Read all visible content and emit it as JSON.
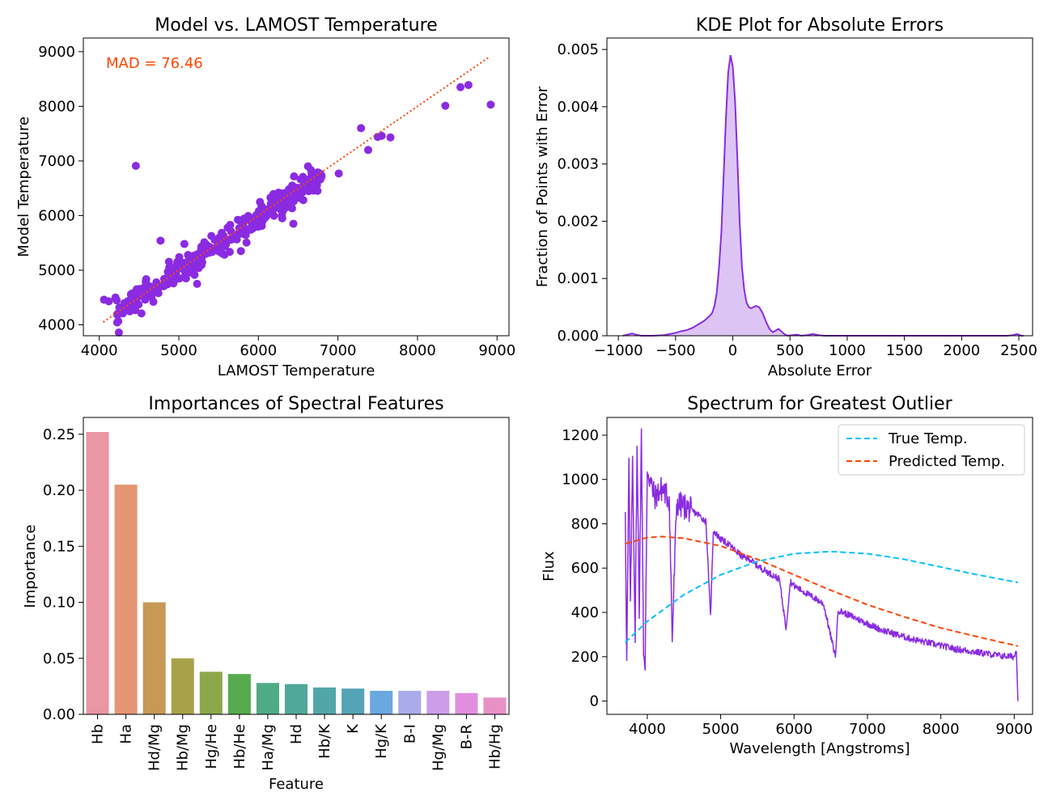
{
  "chart_data": [
    {
      "type": "scatter",
      "title": "Model vs. LAMOST Temperature",
      "xlabel": "LAMOST Temperature",
      "ylabel": "Model Temperature",
      "xlim": [
        3800,
        9150
      ],
      "ylim": [
        3800,
        9250
      ],
      "xticks": [
        4000,
        5000,
        6000,
        7000,
        8000,
        9000
      ],
      "yticks": [
        4000,
        5000,
        6000,
        7000,
        8000,
        9000
      ],
      "grid": false,
      "point_color": "#8a2be2",
      "annotation": {
        "text": "MAD = 76.46",
        "color": "#ff4500"
      },
      "reference_line": {
        "x": [
          4050,
          8900
        ],
        "y": [
          4050,
          8900
        ],
        "color": "#ff4500",
        "style": "dotted"
      },
      "trend_band": {
        "x_start": 4200,
        "x_end": 6800,
        "count": 340,
        "spread": 110
      },
      "points": [
        {
          "x": 4460,
          "y": 6910
        },
        {
          "x": 4770,
          "y": 5540
        },
        {
          "x": 4470,
          "y": 4650
        },
        {
          "x": 4680,
          "y": 4420
        },
        {
          "x": 4530,
          "y": 4210
        },
        {
          "x": 4060,
          "y": 4460
        },
        {
          "x": 4120,
          "y": 4430
        },
        {
          "x": 5090,
          "y": 4850
        },
        {
          "x": 5230,
          "y": 4750
        },
        {
          "x": 5070,
          "y": 5480
        },
        {
          "x": 5320,
          "y": 5510
        },
        {
          "x": 5780,
          "y": 5350
        },
        {
          "x": 6440,
          "y": 5850
        },
        {
          "x": 6300,
          "y": 5950
        },
        {
          "x": 6020,
          "y": 6250
        },
        {
          "x": 6680,
          "y": 6600
        },
        {
          "x": 6760,
          "y": 6780
        },
        {
          "x": 7010,
          "y": 6770
        },
        {
          "x": 7290,
          "y": 7600
        },
        {
          "x": 7380,
          "y": 7200
        },
        {
          "x": 7500,
          "y": 7440
        },
        {
          "x": 7550,
          "y": 7460
        },
        {
          "x": 7660,
          "y": 7430
        },
        {
          "x": 8350,
          "y": 8010
        },
        {
          "x": 8540,
          "y": 8350
        },
        {
          "x": 8640,
          "y": 8390
        },
        {
          "x": 8920,
          "y": 8030
        }
      ]
    },
    {
      "type": "area",
      "title": "KDE Plot for Absolute Errors",
      "xlabel": "Absolute Error",
      "ylabel": "Fraction of Points with Error",
      "xlim": [
        -1100,
        2620
      ],
      "ylim": [
        0,
        0.0052
      ],
      "xticks": [
        -1000,
        -500,
        0,
        500,
        1000,
        1500,
        2000,
        2500
      ],
      "xtick_labels": [
        "−1000",
        "−500",
        "0",
        "500",
        "1000",
        "1500",
        "2000",
        "2500"
      ],
      "yticks": [
        0,
        0.001,
        0.002,
        0.003,
        0.004,
        0.005
      ],
      "ytick_labels": [
        "0.000",
        "0.001",
        "0.002",
        "0.003",
        "0.004",
        "0.005"
      ],
      "grid": false,
      "line_color": "#8a2be2",
      "fill_color": "#dcc5f5",
      "x": [
        -960,
        -920,
        -880,
        -850,
        -800,
        -700,
        -600,
        -500,
        -450,
        -400,
        -350,
        -300,
        -250,
        -200,
        -180,
        -160,
        -140,
        -120,
        -100,
        -80,
        -60,
        -40,
        -20,
        0,
        20,
        40,
        60,
        80,
        100,
        120,
        140,
        160,
        180,
        200,
        230,
        260,
        290,
        320,
        350,
        400,
        450,
        480,
        520,
        560,
        600,
        650,
        700,
        750,
        800,
        900,
        1000,
        1500,
        2000,
        2400,
        2450,
        2480,
        2500,
        2520,
        2540
      ],
      "y": [
        0.0,
        2e-05,
        4e-05,
        2e-05,
        0.0,
        0.0,
        1e-05,
        5e-05,
        8e-05,
        0.0001,
        0.00014,
        0.0002,
        0.00026,
        0.00035,
        0.0004,
        0.00052,
        0.00075,
        0.0012,
        0.0018,
        0.0028,
        0.0038,
        0.0046,
        0.0049,
        0.0047,
        0.0041,
        0.0031,
        0.002,
        0.0012,
        0.0008,
        0.00058,
        0.0005,
        0.00048,
        0.0005,
        0.00052,
        0.0005,
        0.0004,
        0.00025,
        0.00012,
        6e-05,
        0.00012,
        3e-05,
        0.0,
        1e-05,
        2e-05,
        0.0,
        1e-05,
        3e-05,
        1e-05,
        0.0,
        0.0,
        0.0,
        0.0,
        0.0,
        0.0,
        1e-05,
        3e-05,
        2e-05,
        0.0,
        0.0
      ]
    },
    {
      "type": "bar",
      "title": "Importances of Spectral Features",
      "xlabel": "Feature",
      "ylabel": "Importance",
      "ylim": [
        0,
        0.265
      ],
      "yticks": [
        0,
        0.05,
        0.1,
        0.15,
        0.2,
        0.25
      ],
      "ytick_labels": [
        "0.00",
        "0.05",
        "0.10",
        "0.15",
        "0.20",
        "0.25"
      ],
      "grid": false,
      "categories": [
        "Hb",
        "Ha",
        "Hd/Mg",
        "Hb/Mg",
        "Hg/He",
        "Hb/He",
        "Ha/Mg",
        "Hd",
        "Hb/K",
        "K",
        "Hg/K",
        "B-I",
        "Hg/Mg",
        "B-R",
        "Hb/Hg"
      ],
      "values": [
        0.252,
        0.205,
        0.1,
        0.05,
        0.038,
        0.036,
        0.028,
        0.027,
        0.024,
        0.023,
        0.021,
        0.021,
        0.021,
        0.019,
        0.015
      ],
      "colors": [
        "#ea96a3",
        "#e49574",
        "#c69955",
        "#a8a14a",
        "#8da84a",
        "#55ab4d",
        "#4eab86",
        "#4fa99a",
        "#51a7a8",
        "#53a4b6",
        "#6aa8e0",
        "#aaabea",
        "#cc9de9",
        "#e28ee0",
        "#e891c7"
      ]
    },
    {
      "type": "line",
      "title": "Spectrum for Greatest Outlier",
      "xlabel": "Wavelength [Angstroms]",
      "ylabel": "Flux",
      "xlim": [
        3450,
        9250
      ],
      "ylim": [
        -60,
        1280
      ],
      "xticks": [
        4000,
        5000,
        6000,
        7000,
        8000,
        9000
      ],
      "yticks": [
        0,
        200,
        400,
        600,
        800,
        1000,
        1200
      ],
      "grid": false,
      "legend_position": "top-right",
      "series": [
        {
          "name": "True Temp.",
          "color": "#00bfff",
          "style": "dashed",
          "x": [
            3700,
            4000,
            4500,
            5000,
            5500,
            6000,
            6500,
            7000,
            7500,
            8000,
            8500,
            9050
          ],
          "y": [
            265,
            360,
            480,
            570,
            630,
            665,
            675,
            665,
            640,
            605,
            570,
            535
          ]
        },
        {
          "name": "Predicted Temp.",
          "color": "#ff4500",
          "style": "dashed",
          "x": [
            3700,
            4000,
            4200,
            4500,
            5000,
            5500,
            6000,
            6500,
            7000,
            7500,
            8000,
            8500,
            9050
          ],
          "y": [
            710,
            738,
            742,
            735,
            700,
            640,
            570,
            500,
            435,
            380,
            330,
            290,
            248
          ]
        },
        {
          "name": "",
          "color": "#8a2be2",
          "style": "solid",
          "x": [
            3700,
            3720,
            3750,
            3770,
            3800,
            3835,
            3860,
            3890,
            3920,
            3950,
            3970,
            4000,
            4050,
            4100,
            4200,
            4300,
            4340,
            4400,
            4500,
            4600,
            4700,
            4800,
            4861,
            4900,
            5000,
            5100,
            5200,
            5300,
            5400,
            5500,
            5600,
            5700,
            5800,
            5890,
            5950,
            6000,
            6200,
            6400,
            6563,
            6600,
            6800,
            7000,
            7200,
            7400,
            7600,
            7800,
            8000,
            8200,
            8400,
            8600,
            8800,
            9000,
            9030,
            9050
          ],
          "y": [
            880,
            160,
            1080,
            420,
            1100,
            290,
            1150,
            410,
            1200,
            240,
            110,
            1050,
            980,
            920,
            960,
            910,
            280,
            890,
            880,
            860,
            840,
            810,
            380,
            770,
            730,
            710,
            680,
            650,
            640,
            610,
            590,
            570,
            550,
            330,
            540,
            520,
            480,
            440,
            200,
            410,
            380,
            350,
            320,
            300,
            280,
            265,
            250,
            235,
            225,
            215,
            205,
            200,
            230,
            0
          ]
        }
      ]
    }
  ]
}
